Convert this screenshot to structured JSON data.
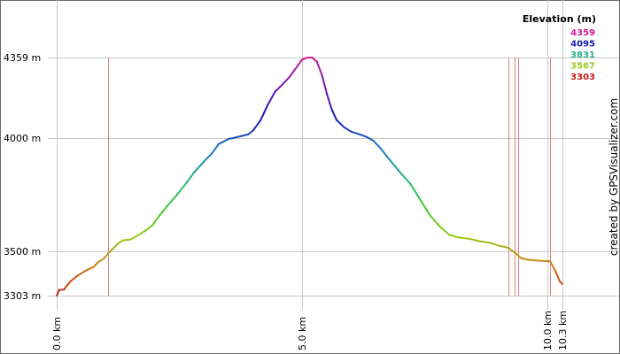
{
  "chart_data": {
    "type": "line",
    "title": "",
    "xlabel": "",
    "ylabel": "",
    "x_unit": "km",
    "y_unit": "m",
    "xlim": [
      0.0,
      10.3
    ],
    "ylim": [
      3303,
      4359
    ],
    "y_ticks": [
      {
        "value": 4359,
        "label": "4359 m"
      },
      {
        "value": 4000,
        "label": "4000 m"
      },
      {
        "value": 3500,
        "label": "3500 m"
      },
      {
        "value": 3303,
        "label": "3303 m"
      }
    ],
    "x_ticks": [
      {
        "value": 0.0,
        "label": "0.0 km"
      },
      {
        "value": 5.0,
        "label": "5.0 km"
      },
      {
        "value": 10.0,
        "label": "10.0 km"
      },
      {
        "value": 10.3,
        "label": "10.3 km"
      }
    ],
    "waypoints_km": [
      1.05,
      9.2,
      9.32,
      9.4,
      10.05
    ],
    "legend": {
      "title": "Elevation (m)",
      "placement": "top-right",
      "entries": [
        {
          "label": "4359",
          "color": "#cc1a99"
        },
        {
          "label": "4095",
          "color": "#1a1ab3"
        },
        {
          "label": "3831",
          "color": "#26b38c"
        },
        {
          "label": "3567",
          "color": "#99cc1a"
        },
        {
          "label": "3303",
          "color": "#cc1a1a"
        }
      ]
    },
    "grid": true,
    "credit": "created by GPSVisualizer.com",
    "series": [
      {
        "x": [
          0.0,
          0.05,
          0.15,
          0.2,
          0.3,
          0.45,
          0.6,
          0.75,
          0.85,
          0.95,
          1.05,
          1.15,
          1.25,
          1.35,
          1.5,
          1.65,
          1.8,
          1.95,
          2.1,
          2.25,
          2.45,
          2.65,
          2.8,
          2.95,
          3.05,
          3.15,
          3.3,
          3.5,
          3.6,
          3.75,
          3.9,
          4.0,
          4.15,
          4.3,
          4.45,
          4.6,
          4.75,
          4.9,
          5.0,
          5.1,
          5.2,
          5.3,
          5.4,
          5.5,
          5.6,
          5.7,
          5.85,
          6.0,
          6.15,
          6.3,
          6.45,
          6.6,
          6.8,
          7.0,
          7.2,
          7.4,
          7.6,
          7.8,
          8.0,
          8.2,
          8.4,
          8.6,
          8.8,
          9.0,
          9.2,
          9.35,
          9.45,
          9.6,
          9.8,
          10.05,
          10.15,
          10.25,
          10.3
        ],
        "y": [
          3303,
          3328,
          3330,
          3345,
          3370,
          3395,
          3415,
          3430,
          3452,
          3465,
          3490,
          3512,
          3535,
          3548,
          3552,
          3570,
          3590,
          3615,
          3660,
          3700,
          3750,
          3805,
          3850,
          3885,
          3910,
          3930,
          3975,
          3998,
          4002,
          4010,
          4018,
          4035,
          4080,
          4150,
          4208,
          4240,
          4275,
          4320,
          4350,
          4358,
          4359,
          4340,
          4283,
          4200,
          4130,
          4082,
          4050,
          4030,
          4020,
          4008,
          3990,
          3955,
          3900,
          3848,
          3800,
          3730,
          3660,
          3610,
          3572,
          3560,
          3555,
          3545,
          3538,
          3525,
          3515,
          3490,
          3470,
          3462,
          3458,
          3455,
          3415,
          3365,
          3355
        ]
      }
    ]
  }
}
